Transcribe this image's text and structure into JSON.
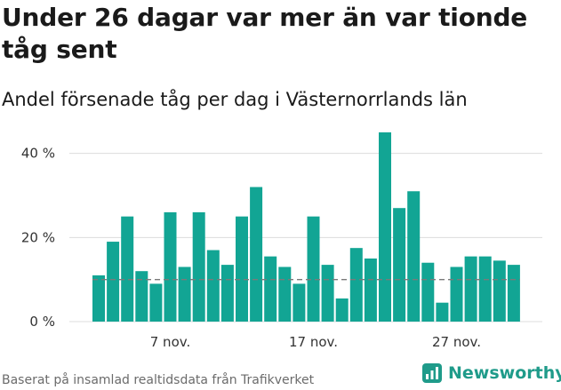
{
  "title": "Under 26 dagar var mer än var tionde tåg sent",
  "subtitle": "Andel försenade tåg per dag i Västernorrlands län",
  "source": "Baserat på insamlad realtidsdata från Trafikverket",
  "brand": {
    "name": "Newsworthy",
    "logo_icon": "newsworthy-logo-icon"
  },
  "colors": {
    "bar": "#12a594",
    "grid": "#dcdcdc",
    "reference": "#7a7a7a",
    "axis_text": "#333333",
    "brand": "#1f9b8a"
  },
  "chart_data": {
    "type": "bar",
    "title": "Under 26 dagar var mer än var tionde tåg sent",
    "subtitle": "Andel försenade tåg per dag i Västernorrlands län",
    "xlabel": "",
    "ylabel": "",
    "unit": "%",
    "ylim": [
      0,
      45
    ],
    "yticks": [
      0,
      20,
      40
    ],
    "ytick_labels": [
      "0 %",
      "20 %",
      "40 %"
    ],
    "grid": true,
    "bar_count": 30,
    "values": [
      11,
      19,
      25,
      12,
      9,
      26,
      13,
      26,
      17,
      13.5,
      25,
      32,
      15.5,
      13,
      9,
      25,
      13.5,
      5.5,
      17.5,
      15,
      45,
      27,
      31,
      14,
      4.5,
      13,
      15.5,
      15.5,
      14.5,
      13.5
    ],
    "xticks": [
      {
        "index": 5,
        "label": "7 nov."
      },
      {
        "index": 15,
        "label": "17 nov."
      },
      {
        "index": 25,
        "label": "27 nov."
      }
    ],
    "reference_line": {
      "value": 10,
      "style": "dashed"
    }
  }
}
